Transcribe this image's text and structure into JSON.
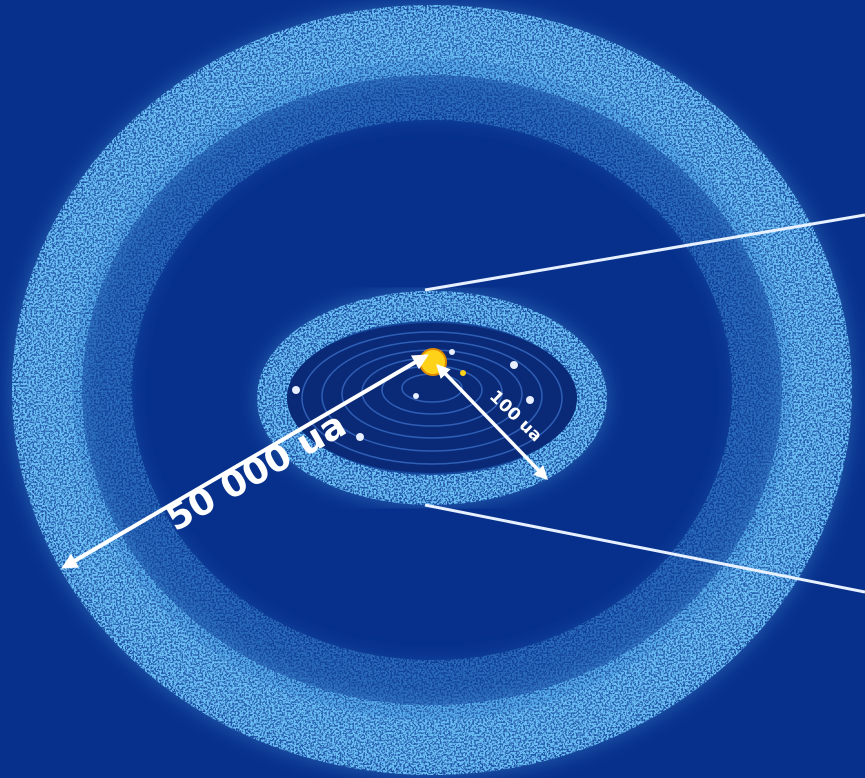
{
  "outer_label": "50 000 ua",
  "inner_label": "100 ua"
}
